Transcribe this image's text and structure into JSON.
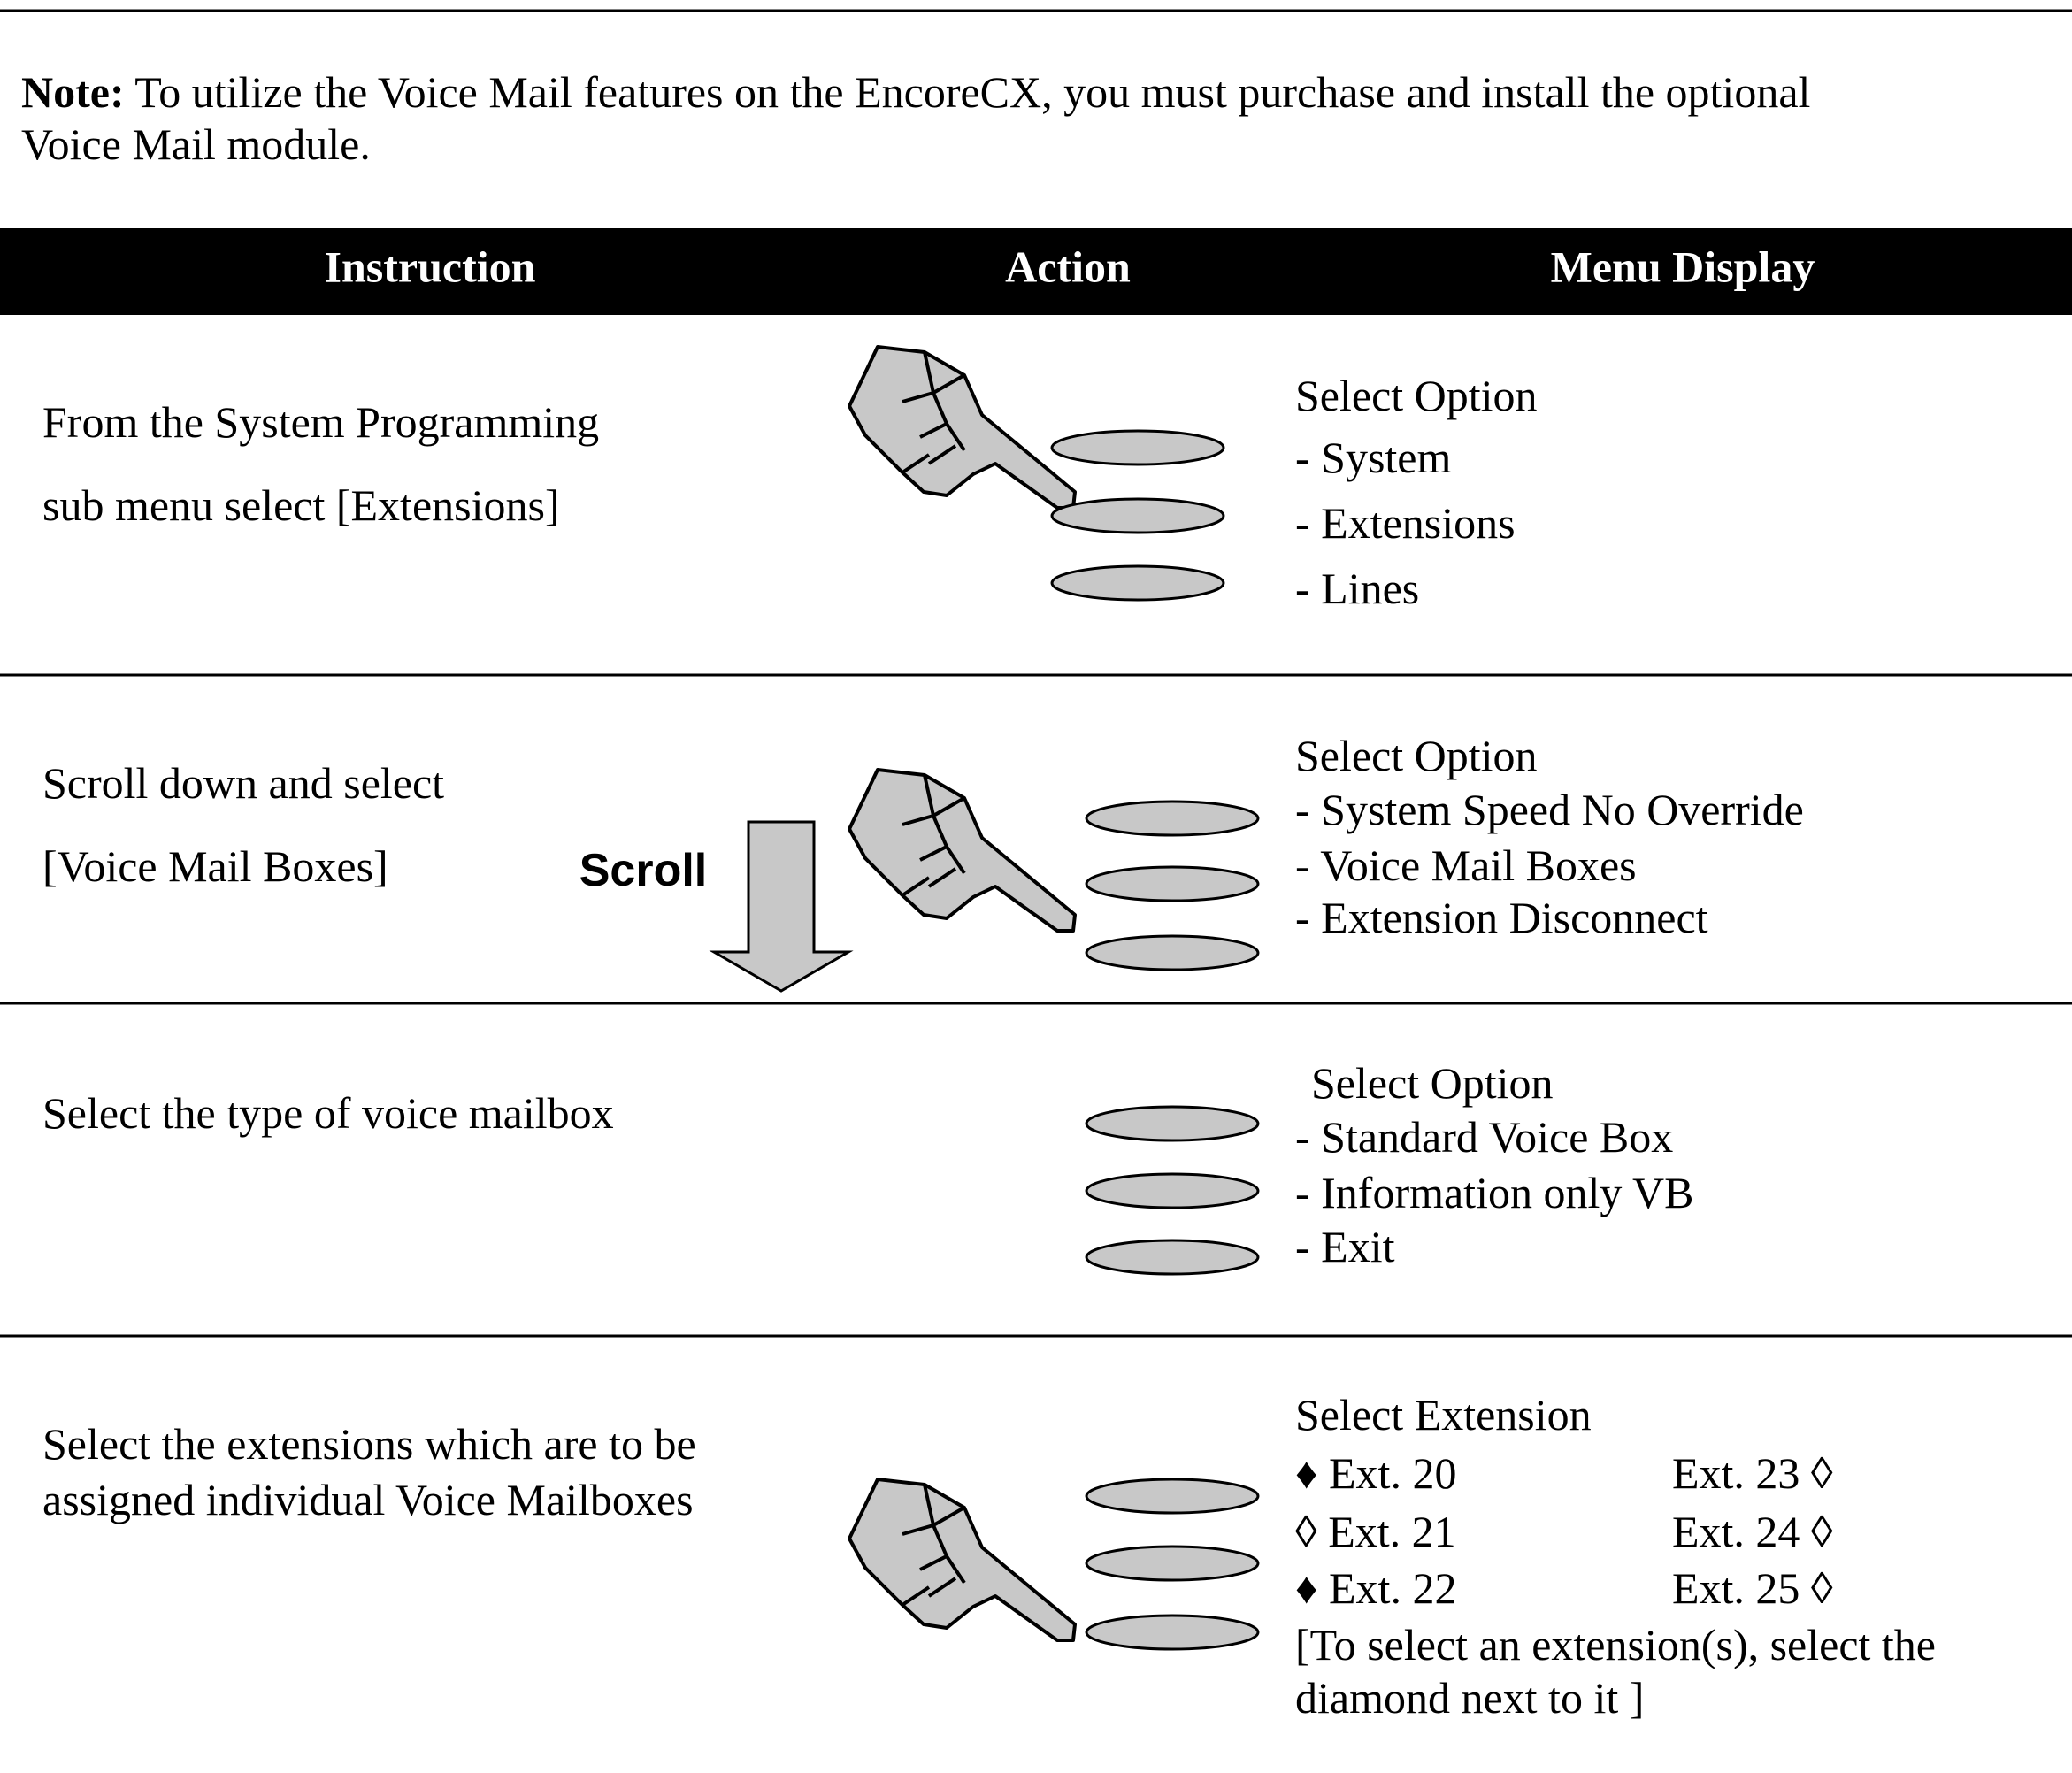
{
  "note": {
    "label": "Note:",
    "lines": [
      "To utilize the Voice Mail features on the EncoreCX, you must purchase and install the optional",
      "Voice Mail module."
    ]
  },
  "table": {
    "headers": [
      "Instruction",
      "Action",
      "Menu Display"
    ],
    "rows": [
      {
        "instruction": [
          "From the System Programming",
          "sub menu select [Extensions]"
        ],
        "menu": [
          "Select Option",
          "- System",
          "- Extensions",
          "- Lines"
        ]
      },
      {
        "instruction": [
          "Scroll down and select",
          "[Voice Mail Boxes]"
        ],
        "action": "Scroll",
        "menu": [
          "Select Option",
          "- System Speed No Override",
          "- Voice Mail Boxes",
          "- Extension Disconnect"
        ]
      },
      {
        "instruction": [
          "Select the type of voice mailbox"
        ],
        "menu": [
          "Select Option",
          "- Standard Voice Box",
          "- Information only VB",
          "- Exit"
        ]
      },
      {
        "instruction": [
          "Select the extensions which are to be",
          "assigned individual Voice Mailboxes"
        ],
        "menu": [
          "Select Extension",
          "♦ Ext. 20",
          "Ext. 23 ◊",
          "◊  Ext. 21",
          "Ext. 24 ◊",
          "♦ Ext. 22",
          "Ext. 25 ◊",
          "[To select an extension(s), select the",
          "diamond next to it ]"
        ]
      }
    ]
  }
}
